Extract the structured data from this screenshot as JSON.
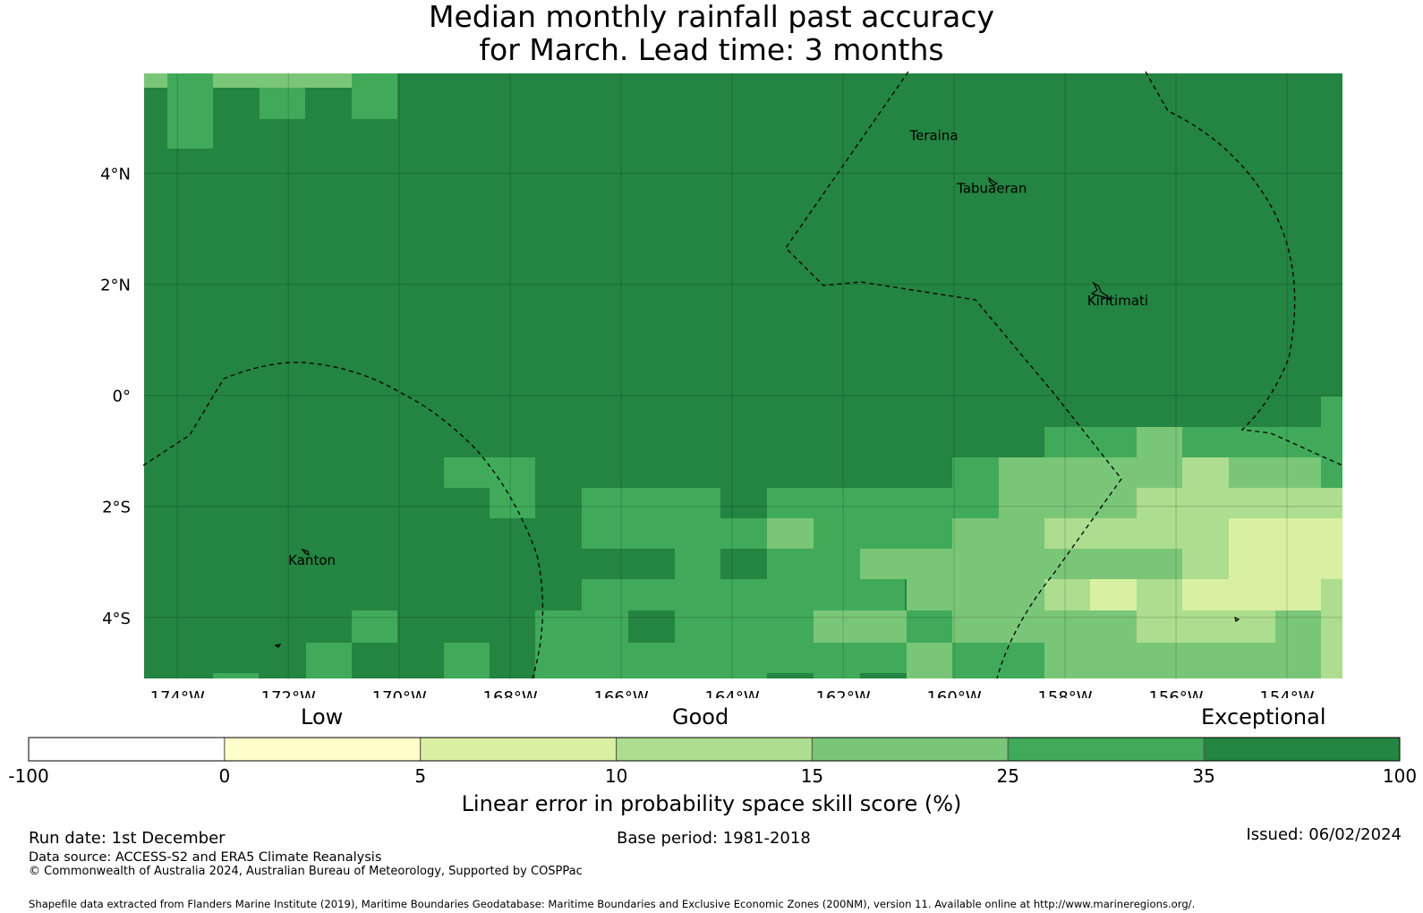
{
  "title": {
    "line1": "Median monthly rainfall past accuracy",
    "line2": "for March. Lead time: 3 months"
  },
  "map": {
    "lon_range": [
      -174.6,
      -153.0
    ],
    "lat_range": [
      -5.1,
      5.8
    ],
    "lon_ticks": [
      {
        "value": -174,
        "label": "174°W"
      },
      {
        "value": -172,
        "label": "172°W"
      },
      {
        "value": -170,
        "label": "170°W"
      },
      {
        "value": -168,
        "label": "168°W"
      },
      {
        "value": -166,
        "label": "166°W"
      },
      {
        "value": -164,
        "label": "164°W"
      },
      {
        "value": -162,
        "label": "162°W"
      },
      {
        "value": -160,
        "label": "160°W"
      },
      {
        "value": -158,
        "label": "158°W"
      },
      {
        "value": -156,
        "label": "156°W"
      },
      {
        "value": -154,
        "label": "154°W"
      }
    ],
    "lat_ticks": [
      {
        "value": 4,
        "label": "4°N"
      },
      {
        "value": 2,
        "label": "2°N"
      },
      {
        "value": 0,
        "label": "0°"
      },
      {
        "value": -2,
        "label": "2°S"
      },
      {
        "value": -4,
        "label": "4°S"
      }
    ],
    "places": [
      {
        "name": "Teraina",
        "lon": -160.8,
        "lat": 4.6
      },
      {
        "name": "Tabuaeran",
        "lon": -159.95,
        "lat": 3.65
      },
      {
        "name": "Kiritimati",
        "lon": -157.6,
        "lat": 1.62
      },
      {
        "name": "Kanton",
        "lon": -172.0,
        "lat": -3.05
      }
    ],
    "colors": {
      "c35": "#248441",
      "c25": "#40aa5a",
      "c15": "#7ac678",
      "c10": "#addd8e",
      "c5": "#d9f0a3",
      "c0": "#ffffcc",
      "cneg": "#ffffff"
    }
  },
  "legend": {
    "categories": {
      "low": "Low",
      "good": "Good",
      "exceptional": "Exceptional"
    },
    "bins": [
      {
        "color": "#ffffff"
      },
      {
        "color": "#ffffcc"
      },
      {
        "color": "#d9f0a3"
      },
      {
        "color": "#addd8e"
      },
      {
        "color": "#7ac678"
      },
      {
        "color": "#40aa5a"
      },
      {
        "color": "#248441"
      }
    ],
    "ticks": [
      "-100",
      "0",
      "5",
      "10",
      "15",
      "25",
      "35",
      "100"
    ],
    "label": "Linear error in probability space skill score (%)"
  },
  "footer": {
    "run_date": "Run date: 1st December",
    "base_period": "Base period: 1981-2018",
    "issued": "Issued: 06/02/2024",
    "data_source": "Data source: ACCESS-S2 and ERA5 Climate Reanalysis",
    "copyright": "© Commonwealth of Australia 2024, Australian Bureau of Meteorology, Supported by COSPPac",
    "shapefile": "Shapefile data extracted from Flanders Marine Institute (2019), Maritime Boundaries Geodatabase: Maritime Boundaries and Exclusive Economic Zones (200NM), version 11. Available online at http://www.marineregions.org/."
  }
}
